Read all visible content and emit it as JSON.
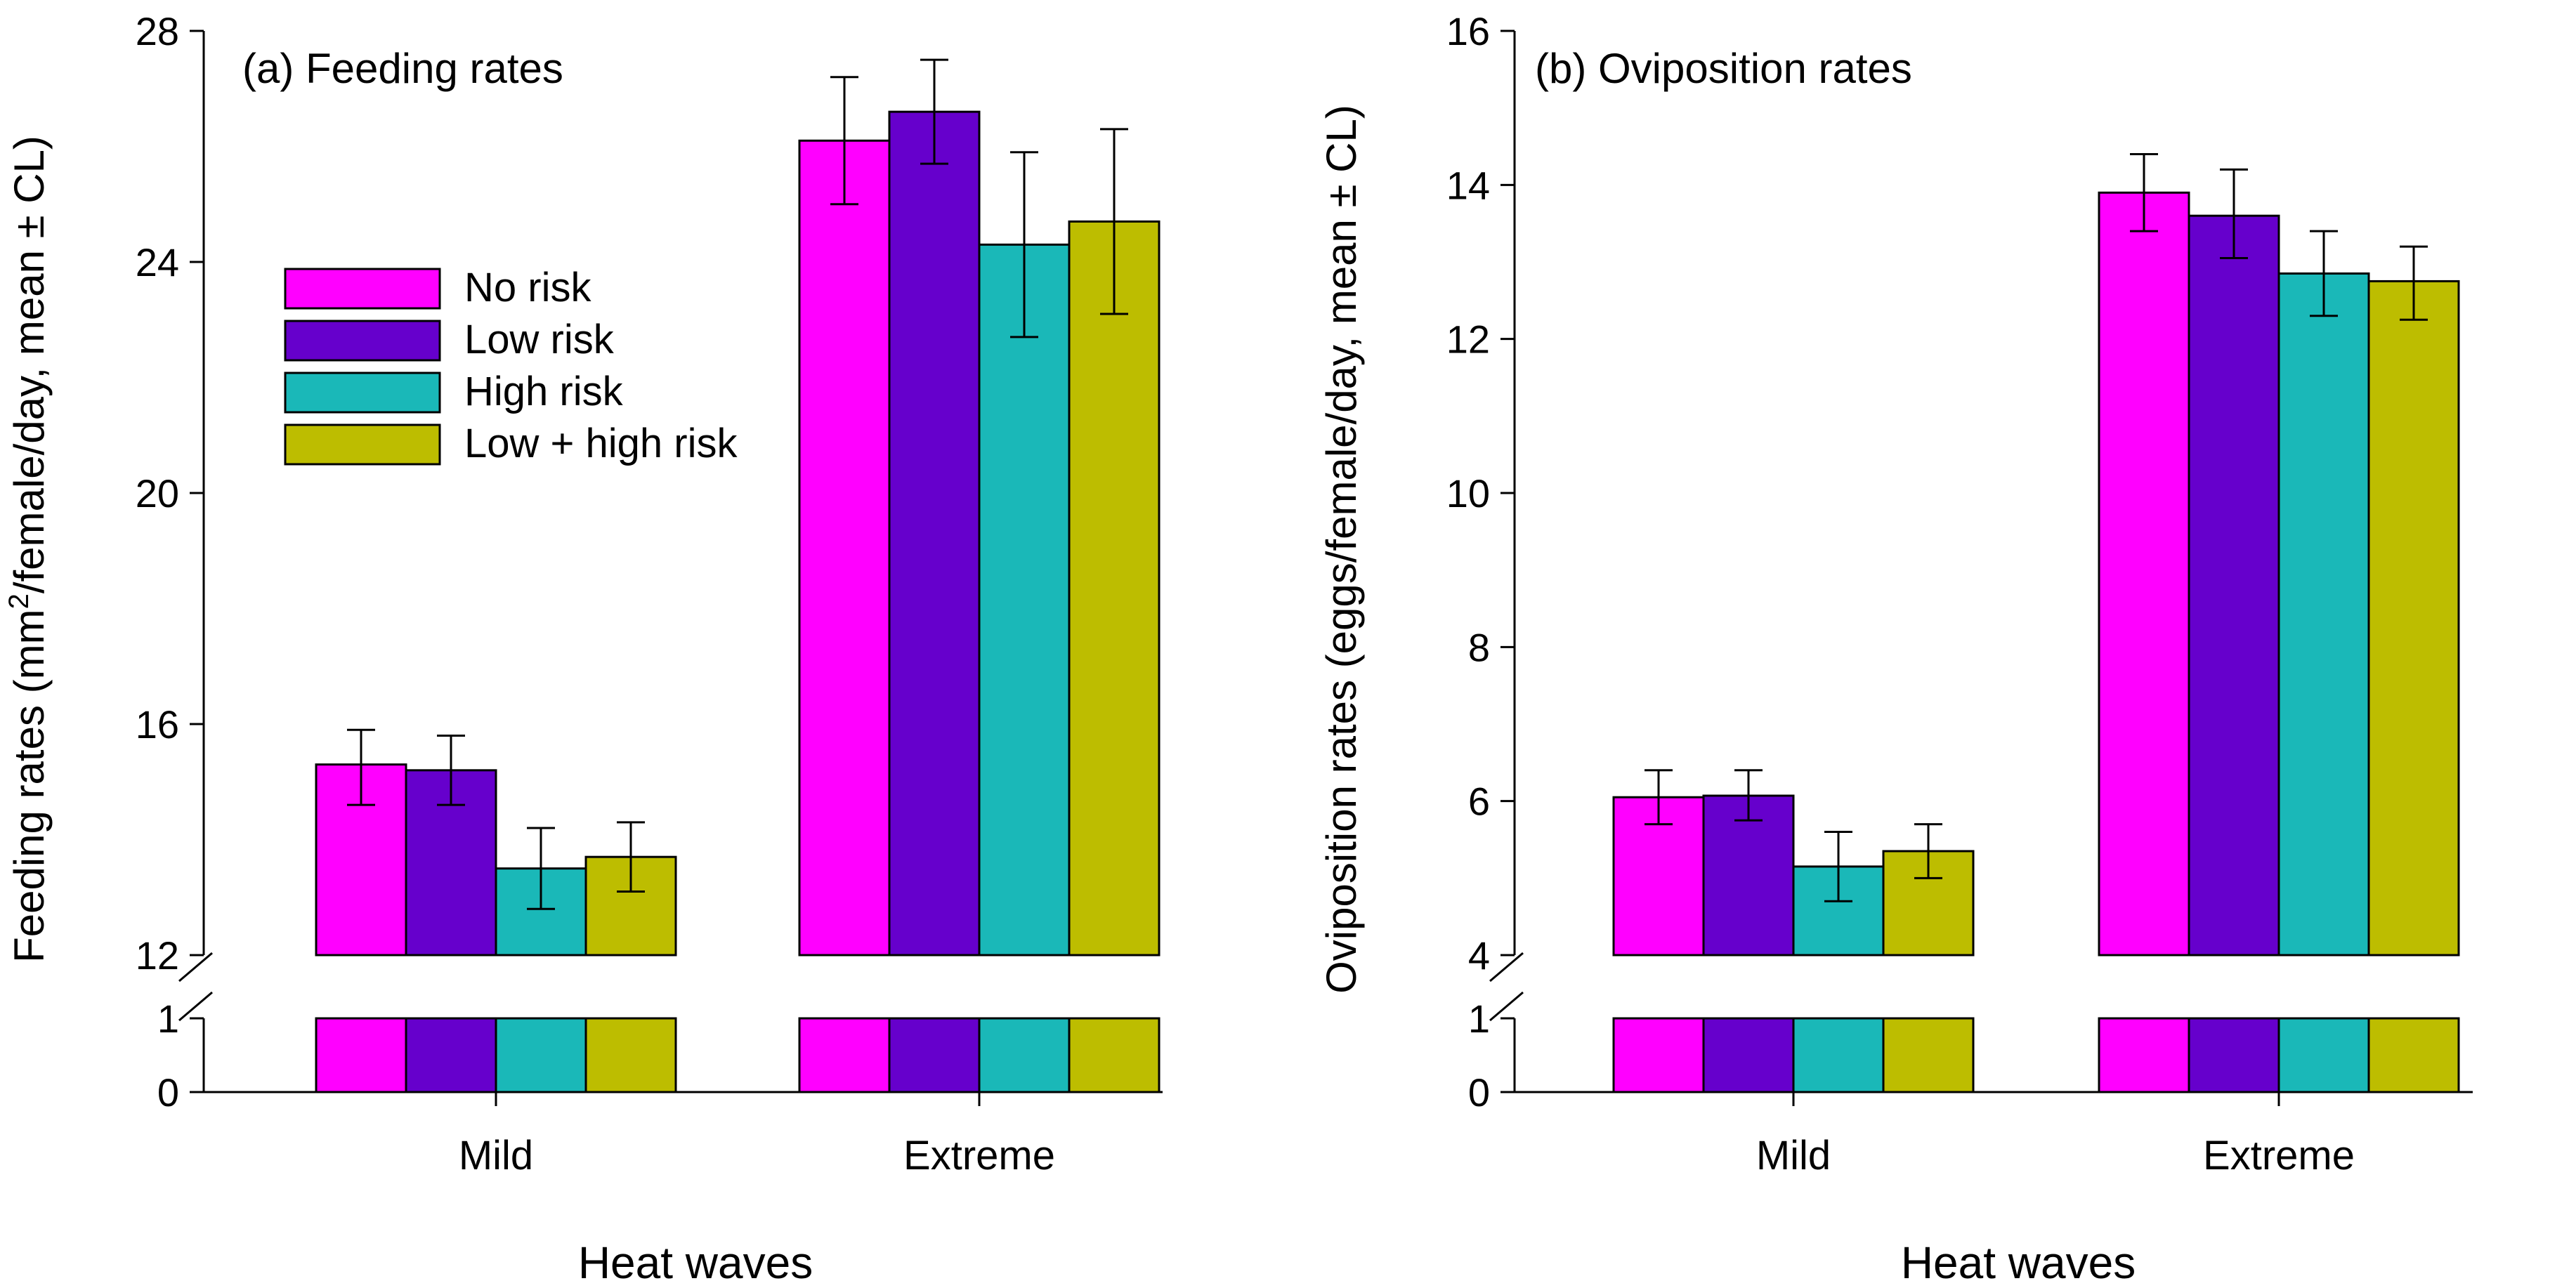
{
  "colors": {
    "no_risk": "#ff00ff",
    "low_risk": "#6600cc",
    "high_risk": "#1ab8b8",
    "low_high_risk": "#bdbd00",
    "axis": "#000000"
  },
  "chart_data": [
    {
      "type": "bar",
      "title": "(a) Feeding rates",
      "xlabel": "Heat waves",
      "ylabel_pre": "Feeding rates (mm",
      "ylabel_sup": "2",
      "ylabel_post": "/female/day, mean ± CL)",
      "categories": [
        "Mild",
        "Extreme"
      ],
      "y_ticks_upper": [
        "12",
        "16",
        "20",
        "24",
        "28"
      ],
      "y_ticks_lower": [
        "0",
        "1"
      ],
      "ylim": [
        12,
        28
      ],
      "lower_ylim": [
        0,
        1
      ],
      "series": [
        {
          "name": "No risk",
          "values": [
            15.3,
            26.1
          ],
          "ci_low": [
            14.6,
            25.0
          ],
          "ci_high": [
            15.9,
            27.2
          ]
        },
        {
          "name": "Low risk",
          "values": [
            15.2,
            26.6
          ],
          "ci_low": [
            14.6,
            25.7
          ],
          "ci_high": [
            15.8,
            27.5
          ]
        },
        {
          "name": "High risk",
          "values": [
            13.5,
            24.3
          ],
          "ci_low": [
            12.8,
            22.7
          ],
          "ci_high": [
            14.2,
            25.9
          ]
        },
        {
          "name": "Low + high risk",
          "values": [
            13.7,
            24.7
          ],
          "ci_low": [
            13.1,
            23.1
          ],
          "ci_high": [
            14.3,
            26.3
          ]
        }
      ],
      "legend": "upper-left"
    },
    {
      "type": "bar",
      "title": "(b) Oviposition rates",
      "xlabel": "Heat waves",
      "ylabel": "Oviposition rates (eggs/female/day, mean ± CL)",
      "categories": [
        "Mild",
        "Extreme"
      ],
      "y_ticks_upper": [
        "4",
        "6",
        "8",
        "10",
        "12",
        "14",
        "16"
      ],
      "y_ticks_lower": [
        "0",
        "1"
      ],
      "ylim": [
        4,
        16
      ],
      "lower_ylim": [
        0,
        1
      ],
      "series": [
        {
          "name": "No risk",
          "values": [
            6.05,
            13.9
          ],
          "ci_low": [
            5.7,
            13.4
          ],
          "ci_high": [
            6.4,
            14.4
          ]
        },
        {
          "name": "Low risk",
          "values": [
            6.07,
            13.6
          ],
          "ci_low": [
            5.75,
            13.05
          ],
          "ci_high": [
            6.4,
            14.2
          ]
        },
        {
          "name": "High risk",
          "values": [
            5.15,
            12.85
          ],
          "ci_low": [
            4.7,
            12.3
          ],
          "ci_high": [
            5.6,
            13.4
          ]
        },
        {
          "name": "Low + high risk",
          "values": [
            5.35,
            12.75
          ],
          "ci_low": [
            5.0,
            12.25
          ],
          "ci_high": [
            5.7,
            13.2
          ]
        }
      ]
    }
  ]
}
